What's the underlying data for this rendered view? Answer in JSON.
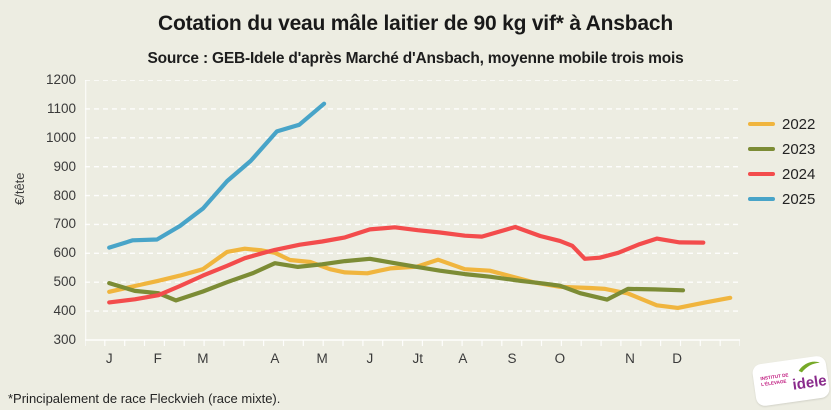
{
  "title": "Cotation du veau mâle laitier de 90 kg vif* à Ansbach",
  "subtitle": "Source : GEB-Idele d'après Marché d'Ansbach, moyenne mobile trois mois",
  "footnote": "*Principalement de race Fleckvieh (race mixte).",
  "logo": {
    "small_text": "INSTITUT DE L'ÉLEVAGE",
    "brand": "idele"
  },
  "colors": {
    "background": "#edede2",
    "grid": "#ffffff",
    "text": "#1d1d1d",
    "y2022": "#f0b53e",
    "y2023": "#7c8c35",
    "y2024": "#f34c4c",
    "y2025": "#48a4c8"
  },
  "chart_data": {
    "type": "line",
    "title": "Cotation du veau mâle laitier de 90 kg vif* à Ansbach",
    "subtitle": "Source : GEB-Idele d'après Marché d'Ansbach, moyenne mobile trois mois",
    "ylabel": "€/tête",
    "xlabel": "",
    "ylim": [
      300,
      1200
    ],
    "yticks": [
      300,
      400,
      500,
      600,
      700,
      800,
      900,
      1000,
      1100,
      1200
    ],
    "grid": "horizontal dashed white gridlines, legend right, weekly minor ticks on x axis",
    "legend_position": "right",
    "x_labels": [
      {
        "label": "J",
        "pos": 0.037
      },
      {
        "label": "F",
        "pos": 0.111
      },
      {
        "label": "M",
        "pos": 0.18
      },
      {
        "label": "A",
        "pos": 0.29
      },
      {
        "label": "M",
        "pos": 0.362
      },
      {
        "label": "J",
        "pos": 0.435
      },
      {
        "label": "Jt",
        "pos": 0.508
      },
      {
        "label": "A",
        "pos": 0.577
      },
      {
        "label": "S",
        "pos": 0.652
      },
      {
        "label": "O",
        "pos": 0.725
      },
      {
        "label": "N",
        "pos": 0.832
      },
      {
        "label": "D",
        "pos": 0.904
      }
    ],
    "series": [
      {
        "name": "2022",
        "color": "#f0b53e",
        "points": [
          [
            0.037,
            467
          ],
          [
            0.076,
            487
          ],
          [
            0.112,
            505
          ],
          [
            0.145,
            523
          ],
          [
            0.18,
            545
          ],
          [
            0.217,
            605
          ],
          [
            0.244,
            616
          ],
          [
            0.27,
            610
          ],
          [
            0.29,
            602
          ],
          [
            0.313,
            577
          ],
          [
            0.344,
            570
          ],
          [
            0.374,
            545
          ],
          [
            0.397,
            534
          ],
          [
            0.431,
            531
          ],
          [
            0.466,
            548
          ],
          [
            0.507,
            554
          ],
          [
            0.539,
            578
          ],
          [
            0.58,
            545
          ],
          [
            0.618,
            540
          ],
          [
            0.684,
            500
          ],
          [
            0.725,
            484
          ],
          [
            0.771,
            480
          ],
          [
            0.794,
            477
          ],
          [
            0.829,
            461
          ],
          [
            0.873,
            420
          ],
          [
            0.905,
            411
          ],
          [
            0.947,
            430
          ],
          [
            0.985,
            446
          ]
        ]
      },
      {
        "name": "2023",
        "color": "#7c8c35",
        "points": [
          [
            0.037,
            497
          ],
          [
            0.076,
            470
          ],
          [
            0.112,
            462
          ],
          [
            0.139,
            437
          ],
          [
            0.18,
            468
          ],
          [
            0.217,
            500
          ],
          [
            0.257,
            532
          ],
          [
            0.29,
            566
          ],
          [
            0.325,
            553
          ],
          [
            0.362,
            562
          ],
          [
            0.397,
            573
          ],
          [
            0.435,
            581
          ],
          [
            0.473,
            566
          ],
          [
            0.507,
            553
          ],
          [
            0.542,
            540
          ],
          [
            0.58,
            528
          ],
          [
            0.618,
            519
          ],
          [
            0.664,
            505
          ],
          [
            0.702,
            495
          ],
          [
            0.725,
            488
          ],
          [
            0.756,
            462
          ],
          [
            0.797,
            440
          ],
          [
            0.829,
            477
          ],
          [
            0.87,
            475
          ],
          [
            0.913,
            472
          ]
        ]
      },
      {
        "name": "2024",
        "color": "#f34c4c",
        "points": [
          [
            0.037,
            430
          ],
          [
            0.076,
            441
          ],
          [
            0.112,
            455
          ],
          [
            0.145,
            487
          ],
          [
            0.18,
            523
          ],
          [
            0.217,
            557
          ],
          [
            0.244,
            583
          ],
          [
            0.27,
            600
          ],
          [
            0.29,
            612
          ],
          [
            0.328,
            630
          ],
          [
            0.362,
            641
          ],
          [
            0.397,
            655
          ],
          [
            0.435,
            683
          ],
          [
            0.473,
            690
          ],
          [
            0.508,
            680
          ],
          [
            0.542,
            672
          ],
          [
            0.58,
            661
          ],
          [
            0.606,
            658
          ],
          [
            0.657,
            691
          ],
          [
            0.695,
            660
          ],
          [
            0.725,
            643
          ],
          [
            0.744,
            626
          ],
          [
            0.763,
            581
          ],
          [
            0.786,
            585
          ],
          [
            0.814,
            602
          ],
          [
            0.847,
            632
          ],
          [
            0.873,
            651
          ],
          [
            0.908,
            638
          ],
          [
            0.944,
            637
          ]
        ]
      },
      {
        "name": "2025",
        "color": "#48a4c8",
        "points": [
          [
            0.037,
            620
          ],
          [
            0.073,
            645
          ],
          [
            0.11,
            648
          ],
          [
            0.145,
            695
          ],
          [
            0.18,
            755
          ],
          [
            0.217,
            850
          ],
          [
            0.253,
            920
          ],
          [
            0.293,
            1022
          ],
          [
            0.327,
            1045
          ],
          [
            0.365,
            1118
          ]
        ]
      }
    ]
  }
}
